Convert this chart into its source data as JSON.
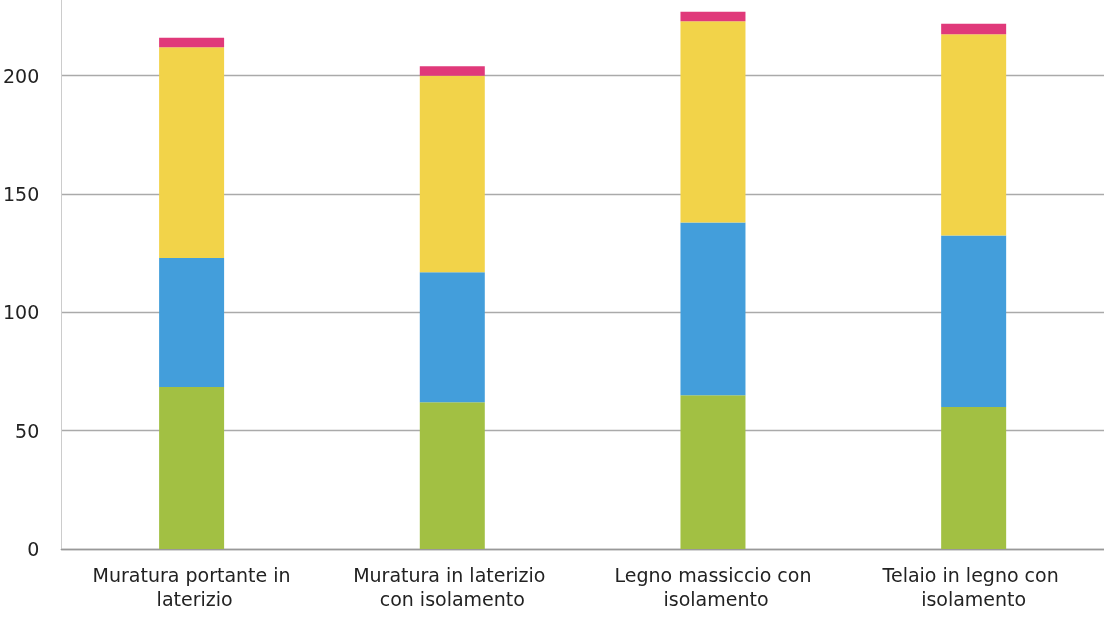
{
  "chart_data": {
    "type": "bar",
    "stacked": true,
    "categories": [
      "Muratura portante in laterizio",
      "Muratura in laterizio con isolamento",
      "Legno massiccio con isolamento",
      "Telaio in legno con isolamento"
    ],
    "series": [
      {
        "color": "#a2c043",
        "values": [
          68.5,
          62,
          65,
          60
        ]
      },
      {
        "color": "#439edb",
        "values": [
          54.5,
          55,
          73,
          72.5
        ]
      },
      {
        "color": "#f2d349",
        "values": [
          89,
          83,
          85,
          85
        ]
      },
      {
        "color": "#e0397a",
        "values": [
          4,
          4,
          4,
          4.5
        ]
      }
    ],
    "ylim": [
      0,
      232
    ],
    "yticks": [
      0,
      50,
      100,
      150,
      200
    ],
    "grid": "y"
  }
}
